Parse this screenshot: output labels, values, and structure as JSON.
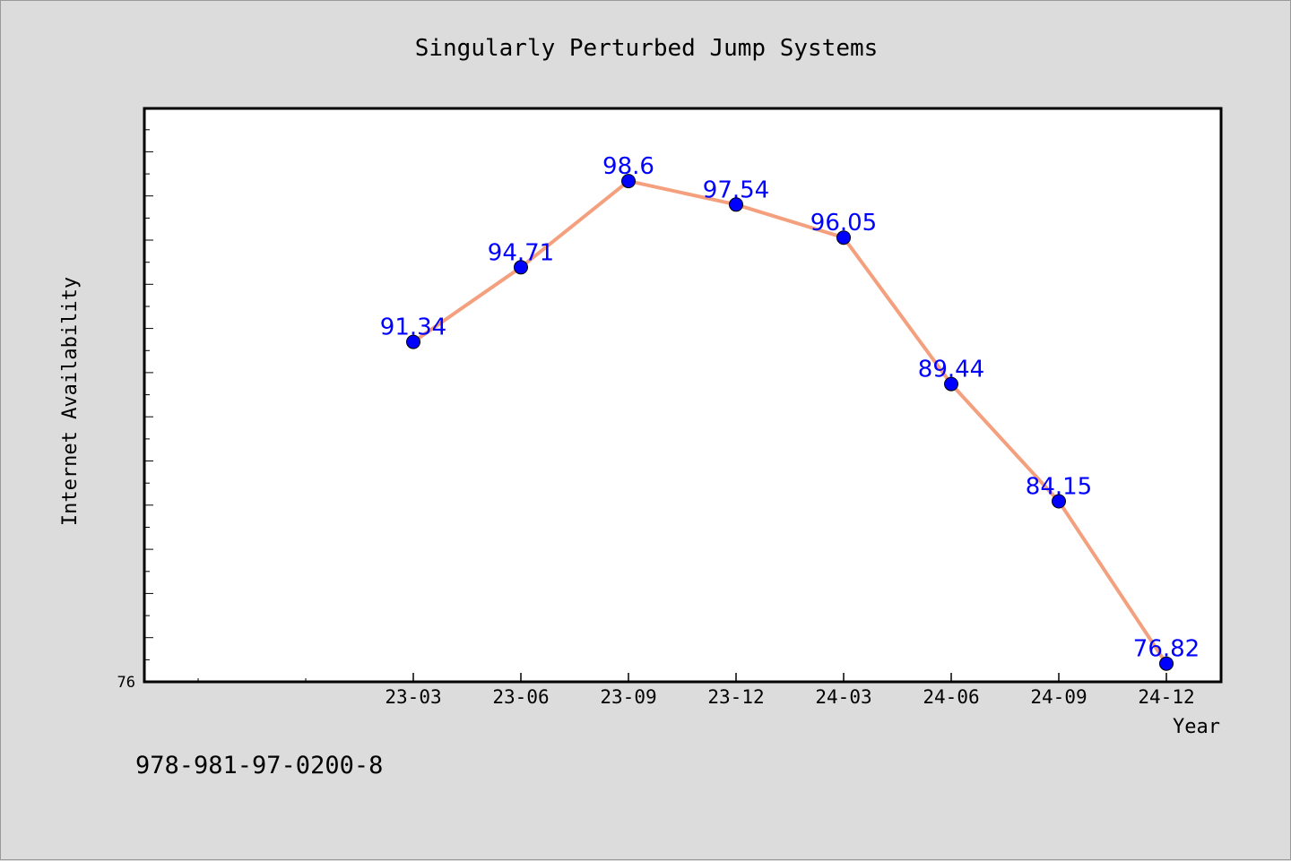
{
  "chart_data": {
    "type": "line",
    "title": "Singularly Perturbed Jump Systems",
    "xlabel": "Year",
    "ylabel": "Internet Availability",
    "categories": [
      "23-03",
      "23-06",
      "23-09",
      "23-12",
      "24-03",
      "24-06",
      "24-09",
      "24-12"
    ],
    "series": [
      {
        "values": [
          91.34,
          94.71,
          98.6,
          97.54,
          96.05,
          89.44,
          84.15,
          76.82
        ]
      }
    ],
    "data_labels": [
      "91.34",
      "94.71",
      "98.6",
      "97.54",
      "96.05",
      "89.44",
      "84.15",
      "76.82"
    ],
    "y_tick_labels": [
      "76"
    ],
    "ylim": [
      76,
      101.88
    ],
    "grid": false,
    "line_color": "#f4a07e",
    "marker_color": "#0000ff",
    "label_color": "#0000ff"
  },
  "footer_text": "978-981-97-0200-8"
}
